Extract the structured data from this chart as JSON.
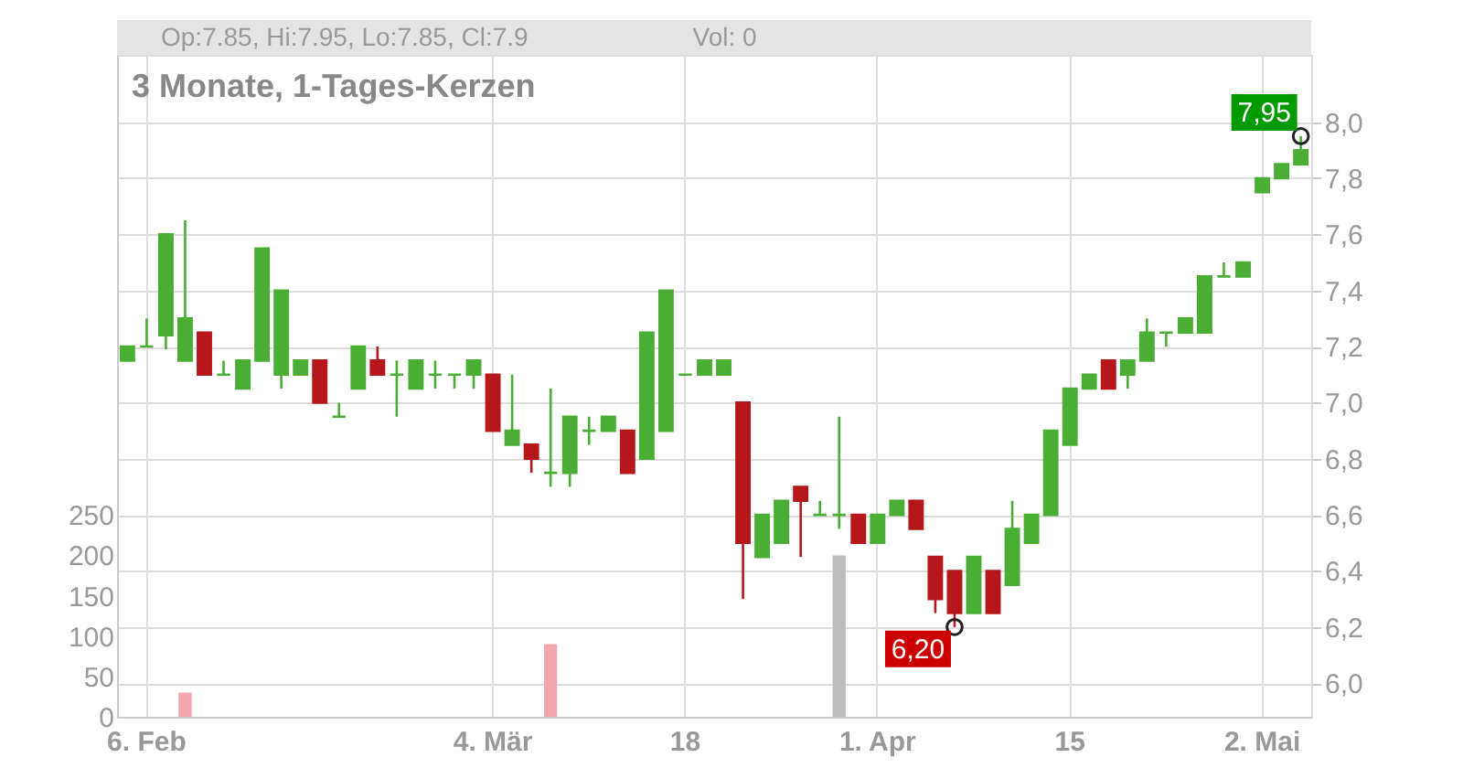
{
  "chart_data": {
    "type": "candlestick",
    "title": "3 Monate, 1-Tages-Kerzen",
    "categories": [
      null,
      "6. Feb",
      null,
      null,
      null,
      null,
      null,
      null,
      null,
      null,
      null,
      null,
      null,
      null,
      null,
      null,
      null,
      null,
      null,
      "4. Mär",
      null,
      null,
      null,
      null,
      null,
      null,
      null,
      null,
      null,
      "18",
      null,
      null,
      null,
      null,
      null,
      null,
      null,
      null,
      null,
      "1. Apr",
      null,
      null,
      null,
      null,
      null,
      null,
      null,
      null,
      null,
      "15",
      null,
      null,
      null,
      null,
      null,
      null,
      null,
      null,
      null,
      "2. Mai",
      null,
      null
    ],
    "ohlc": [
      [
        7.15,
        7.2,
        7.15,
        7.2
      ],
      [
        7.2,
        7.3,
        7.2,
        7.2
      ],
      [
        7.24,
        7.6,
        7.19,
        7.6
      ],
      [
        7.15,
        7.65,
        7.15,
        7.3
      ],
      [
        7.25,
        7.25,
        7.1,
        7.1
      ],
      [
        7.1,
        7.15,
        7.1,
        7.1
      ],
      [
        7.05,
        7.15,
        7.05,
        7.15
      ],
      [
        7.15,
        7.55,
        7.15,
        7.55
      ],
      [
        7.1,
        7.4,
        7.05,
        7.4
      ],
      [
        7.1,
        7.15,
        7.1,
        7.15
      ],
      [
        7.15,
        7.15,
        7.0,
        7.0
      ],
      [
        6.95,
        7.0,
        6.95,
        6.95
      ],
      [
        7.05,
        7.2,
        7.05,
        7.2
      ],
      [
        7.15,
        7.2,
        7.1,
        7.1
      ],
      [
        7.1,
        7.15,
        6.95,
        7.1
      ],
      [
        7.05,
        7.15,
        7.05,
        7.15
      ],
      [
        7.1,
        7.15,
        7.05,
        7.1
      ],
      [
        7.1,
        7.1,
        7.05,
        7.1
      ],
      [
        7.1,
        7.15,
        7.05,
        7.15
      ],
      [
        7.1,
        7.1,
        6.9,
        6.9
      ],
      [
        6.85,
        7.1,
        6.85,
        6.9
      ],
      [
        6.85,
        6.85,
        6.75,
        6.8
      ],
      [
        6.75,
        7.05,
        6.7,
        6.75
      ],
      [
        6.75,
        6.95,
        6.7,
        6.95
      ],
      [
        6.9,
        6.95,
        6.85,
        6.9
      ],
      [
        6.9,
        6.95,
        6.9,
        6.95
      ],
      [
        6.9,
        6.9,
        6.75,
        6.75
      ],
      [
        6.8,
        7.25,
        6.8,
        7.25
      ],
      [
        6.9,
        7.4,
        6.9,
        7.4
      ],
      [
        7.1,
        7.1,
        7.1,
        7.1
      ],
      [
        7.1,
        7.15,
        7.1,
        7.15
      ],
      [
        7.1,
        7.15,
        7.1,
        7.15
      ],
      [
        7.0,
        7.0,
        6.3,
        6.5
      ],
      [
        6.45,
        6.6,
        6.45,
        6.6
      ],
      [
        6.5,
        6.65,
        6.5,
        6.65
      ],
      [
        6.7,
        6.7,
        6.45,
        6.65
      ],
      [
        6.6,
        6.65,
        6.6,
        6.6
      ],
      [
        6.6,
        6.95,
        6.55,
        6.6
      ],
      [
        6.6,
        6.6,
        6.5,
        6.5
      ],
      [
        6.5,
        6.6,
        6.5,
        6.6
      ],
      [
        6.6,
        6.65,
        6.6,
        6.65
      ],
      [
        6.65,
        6.65,
        6.55,
        6.55
      ],
      [
        6.45,
        6.45,
        6.25,
        6.3
      ],
      [
        6.4,
        6.4,
        6.2,
        6.25
      ],
      [
        6.25,
        6.45,
        6.25,
        6.45
      ],
      [
        6.4,
        6.4,
        6.25,
        6.25
      ],
      [
        6.35,
        6.65,
        6.35,
        6.55
      ],
      [
        6.5,
        6.6,
        6.5,
        6.6
      ],
      [
        6.6,
        6.9,
        6.6,
        6.9
      ],
      [
        6.85,
        7.05,
        6.85,
        7.05
      ],
      [
        7.05,
        7.1,
        7.05,
        7.1
      ],
      [
        7.15,
        7.15,
        7.05,
        7.05
      ],
      [
        7.1,
        7.15,
        7.05,
        7.15
      ],
      [
        7.15,
        7.3,
        7.15,
        7.25
      ],
      [
        7.25,
        7.25,
        7.2,
        7.25
      ],
      [
        7.25,
        7.3,
        7.25,
        7.3
      ],
      [
        7.25,
        7.45,
        7.25,
        7.45
      ],
      [
        7.45,
        7.5,
        7.45,
        7.45
      ],
      [
        7.45,
        7.5,
        7.45,
        7.5
      ],
      [
        7.75,
        7.8,
        7.75,
        7.8
      ],
      [
        7.8,
        7.85,
        7.8,
        7.85
      ],
      [
        7.85,
        7.95,
        7.85,
        7.9
      ]
    ],
    "colors": [
      "#4aae35",
      "#4aae35",
      "#4aae35",
      "#4aae35",
      "#b5171b",
      "#4aae35",
      "#4aae35",
      "#4aae35",
      "#4aae35",
      "#4aae35",
      "#b5171b",
      "#4aae35",
      "#4aae35",
      "#b5171b",
      "#4aae35",
      "#4aae35",
      "#4aae35",
      "#4aae35",
      "#4aae35",
      "#b5171b",
      "#4aae35",
      "#b5171b",
      "#4aae35",
      "#4aae35",
      "#4aae35",
      "#4aae35",
      "#b5171b",
      "#4aae35",
      "#4aae35",
      "#4aae35",
      "#4aae35",
      "#4aae35",
      "#b5171b",
      "#4aae35",
      "#4aae35",
      "#b5171b",
      "#4aae35",
      "#4aae35",
      "#b5171b",
      "#4aae35",
      "#4aae35",
      "#b5171b",
      "#b5171b",
      "#b5171b",
      "#4aae35",
      "#b5171b",
      "#4aae35",
      "#4aae35",
      "#4aae35",
      "#4aae35",
      "#4aae35",
      "#b5171b",
      "#4aae35",
      "#4aae35",
      "#4aae35",
      "#4aae35",
      "#4aae35",
      "#4aae35",
      "#4aae35",
      "#4aae35",
      "#4aae35",
      "#4aae35"
    ],
    "series": [
      {
        "type": "bar",
        "axis": "y2",
        "values": [
          0,
          0,
          0,
          30,
          0,
          0,
          0,
          0,
          0,
          0,
          0,
          0,
          0,
          0,
          0,
          0,
          0,
          0,
          0,
          0,
          0,
          0,
          90,
          0,
          0,
          0,
          0,
          0,
          0,
          0,
          0,
          0,
          0,
          0,
          0,
          0,
          0,
          200,
          0,
          0,
          0,
          0,
          0,
          0,
          0,
          0,
          0,
          0,
          0,
          0,
          0,
          0,
          0,
          0,
          0,
          0,
          0,
          0,
          0,
          0,
          0,
          0
        ],
        "colors": [
          "#bdbdbd",
          "#bdbdbd",
          "#bdbdbd",
          "#f0a7b0",
          "#bdbdbd",
          "#bdbdbd",
          "#bdbdbd",
          "#bdbdbd",
          "#bdbdbd",
          "#bdbdbd",
          "#bdbdbd",
          "#bdbdbd",
          "#bdbdbd",
          "#bdbdbd",
          "#bdbdbd",
          "#bdbdbd",
          "#bdbdbd",
          "#bdbdbd",
          "#bdbdbd",
          "#bdbdbd",
          "#bdbdbd",
          "#bdbdbd",
          "#f0a7b0",
          "#bdbdbd",
          "#bdbdbd",
          "#bdbdbd",
          "#bdbdbd",
          "#bdbdbd",
          "#bdbdbd",
          "#bdbdbd",
          "#bdbdbd",
          "#bdbdbd",
          "#bdbdbd",
          "#bdbdbd",
          "#bdbdbd",
          "#bdbdbd",
          "#bdbdbd",
          "#bdbdbd",
          "#bdbdbd",
          "#bdbdbd",
          "#bdbdbd",
          "#bdbdbd",
          "#bdbdbd",
          "#bdbdbd",
          "#bdbdbd",
          "#bdbdbd",
          "#bdbdbd",
          "#bdbdbd",
          "#bdbdbd",
          "#bdbdbd",
          "#bdbdbd",
          "#bdbdbd",
          "#bdbdbd",
          "#bdbdbd",
          "#bdbdbd",
          "#bdbdbd",
          "#bdbdbd",
          "#bdbdbd",
          "#bdbdbd",
          "#bdbdbd",
          "#bdbdbd",
          "#bdbdbd"
        ]
      },
      {
        "type": "scatter",
        "marker": "circle",
        "color": "#222222",
        "values": [
          null,
          null,
          null,
          null,
          null,
          null,
          null,
          null,
          null,
          null,
          null,
          null,
          null,
          null,
          null,
          null,
          null,
          null,
          null,
          null,
          null,
          null,
          null,
          null,
          null,
          null,
          null,
          null,
          null,
          null,
          null,
          null,
          null,
          null,
          null,
          null,
          null,
          null,
          null,
          null,
          null,
          null,
          null,
          6.2,
          null,
          null,
          null,
          null,
          null,
          null,
          null,
          null,
          null,
          null,
          null,
          null,
          null,
          null,
          null,
          null,
          null,
          7.95
        ]
      }
    ],
    "ylim": [
      5.88,
      8.24
    ],
    "yticks": [
      {
        "value": 6.0,
        "label": "6,0"
      },
      {
        "value": 6.2,
        "label": "6,2"
      },
      {
        "value": 6.4,
        "label": "6,4"
      },
      {
        "value": 6.6,
        "label": "6,6"
      },
      {
        "value": 6.8,
        "label": "6,8"
      },
      {
        "value": 7.0,
        "label": "7,0"
      },
      {
        "value": 7.2,
        "label": "7,2"
      },
      {
        "value": 7.4,
        "label": "7,4"
      },
      {
        "value": 7.6,
        "label": "7,6"
      },
      {
        "value": 7.8,
        "label": "7,8"
      },
      {
        "value": 8.0,
        "label": "8,0"
      }
    ],
    "y2lim": [
      0,
      820
    ],
    "y2ticks": [
      0,
      50,
      100,
      150,
      200,
      250
    ],
    "grid": true,
    "annotations": [
      "Op:7.85, Hi:7.95, Lo:7.85, Cl:7.9",
      "Vol: 0",
      "7,95",
      "6,20"
    ]
  }
}
